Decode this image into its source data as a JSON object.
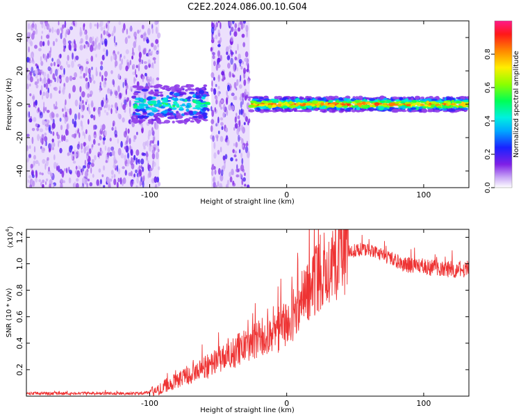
{
  "title": "C2E2.2024.086.00.10.G04",
  "chart_data": [
    {
      "type": "heatmap",
      "xlabel": "Height of straight line (km)",
      "ylabel": "Frequency (Hz)",
      "xlim": [
        -190,
        133
      ],
      "ylim": [
        -50,
        50
      ],
      "xticks": [
        -100,
        0,
        100
      ],
      "yticks": [
        -40,
        -20,
        0,
        20,
        40
      ],
      "colorbar": {
        "label": "Normalized spectral amplitude",
        "range": [
          0.0,
          1.0
        ],
        "ticks": [
          0.0,
          0.2,
          0.4,
          0.6,
          0.8
        ]
      },
      "regions": [
        {
          "x_range": [
            -190,
            -93
          ],
          "f_range": [
            -50,
            50
          ],
          "description": "broadband noise",
          "amplitude": 0.05
        },
        {
          "x_range": [
            -112,
            -57
          ],
          "f_range": [
            -8,
            8
          ],
          "description": "narrow signal band near 0 Hz",
          "amplitude": 0.45
        },
        {
          "x_range": [
            -55,
            -27
          ],
          "f_range": [
            -50,
            50
          ],
          "description": "broadband noise",
          "amplitude": 0.06
        },
        {
          "x_range": [
            -27,
            133
          ],
          "f_range": [
            -3,
            3
          ],
          "description": "strong narrowband signal near 0 Hz",
          "amplitude": 0.85
        }
      ]
    },
    {
      "type": "line",
      "xlabel": "Height of straight line (km)",
      "ylabel": "SNR (10 * v/v)",
      "y_multiplier": "(x10",
      "y_multiplier_exp": "4",
      "y_multiplier_close": ")",
      "xlim": [
        -190,
        133
      ],
      "ylim": [
        0.0,
        1.26
      ],
      "xticks": [
        -100,
        0,
        100
      ],
      "yticks": [
        0.2,
        0.4,
        0.6,
        0.8,
        1.0,
        1.2
      ],
      "series": [
        {
          "color": "#ee3333",
          "x": [
            -190,
            -170,
            -150,
            -130,
            -110,
            -100,
            -95,
            -90,
            -85,
            -80,
            -75,
            -70,
            -65,
            -60,
            -55,
            -50,
            -45,
            -40,
            -35,
            -30,
            -25,
            -20,
            -15,
            -10,
            -5,
            0,
            5,
            10,
            15,
            20,
            25,
            30,
            35,
            40,
            45,
            50,
            55,
            60,
            65,
            70,
            75,
            80,
            85,
            90,
            95,
            100,
            105,
            110,
            115,
            120,
            125,
            133
          ],
          "values": [
            0.02,
            0.02,
            0.02,
            0.02,
            0.02,
            0.03,
            0.04,
            0.07,
            0.1,
            0.12,
            0.15,
            0.17,
            0.19,
            0.21,
            0.24,
            0.28,
            0.31,
            0.33,
            0.35,
            0.37,
            0.4,
            0.43,
            0.45,
            0.46,
            0.5,
            0.55,
            0.62,
            0.71,
            0.8,
            0.88,
            0.95,
            1.0,
            1.04,
            1.07,
            1.09,
            1.1,
            1.11,
            1.1,
            1.08,
            1.06,
            1.04,
            1.02,
            1.0,
            0.99,
            0.98,
            0.98,
            0.97,
            0.97,
            0.96,
            0.96,
            0.96,
            0.96
          ]
        }
      ]
    }
  ]
}
